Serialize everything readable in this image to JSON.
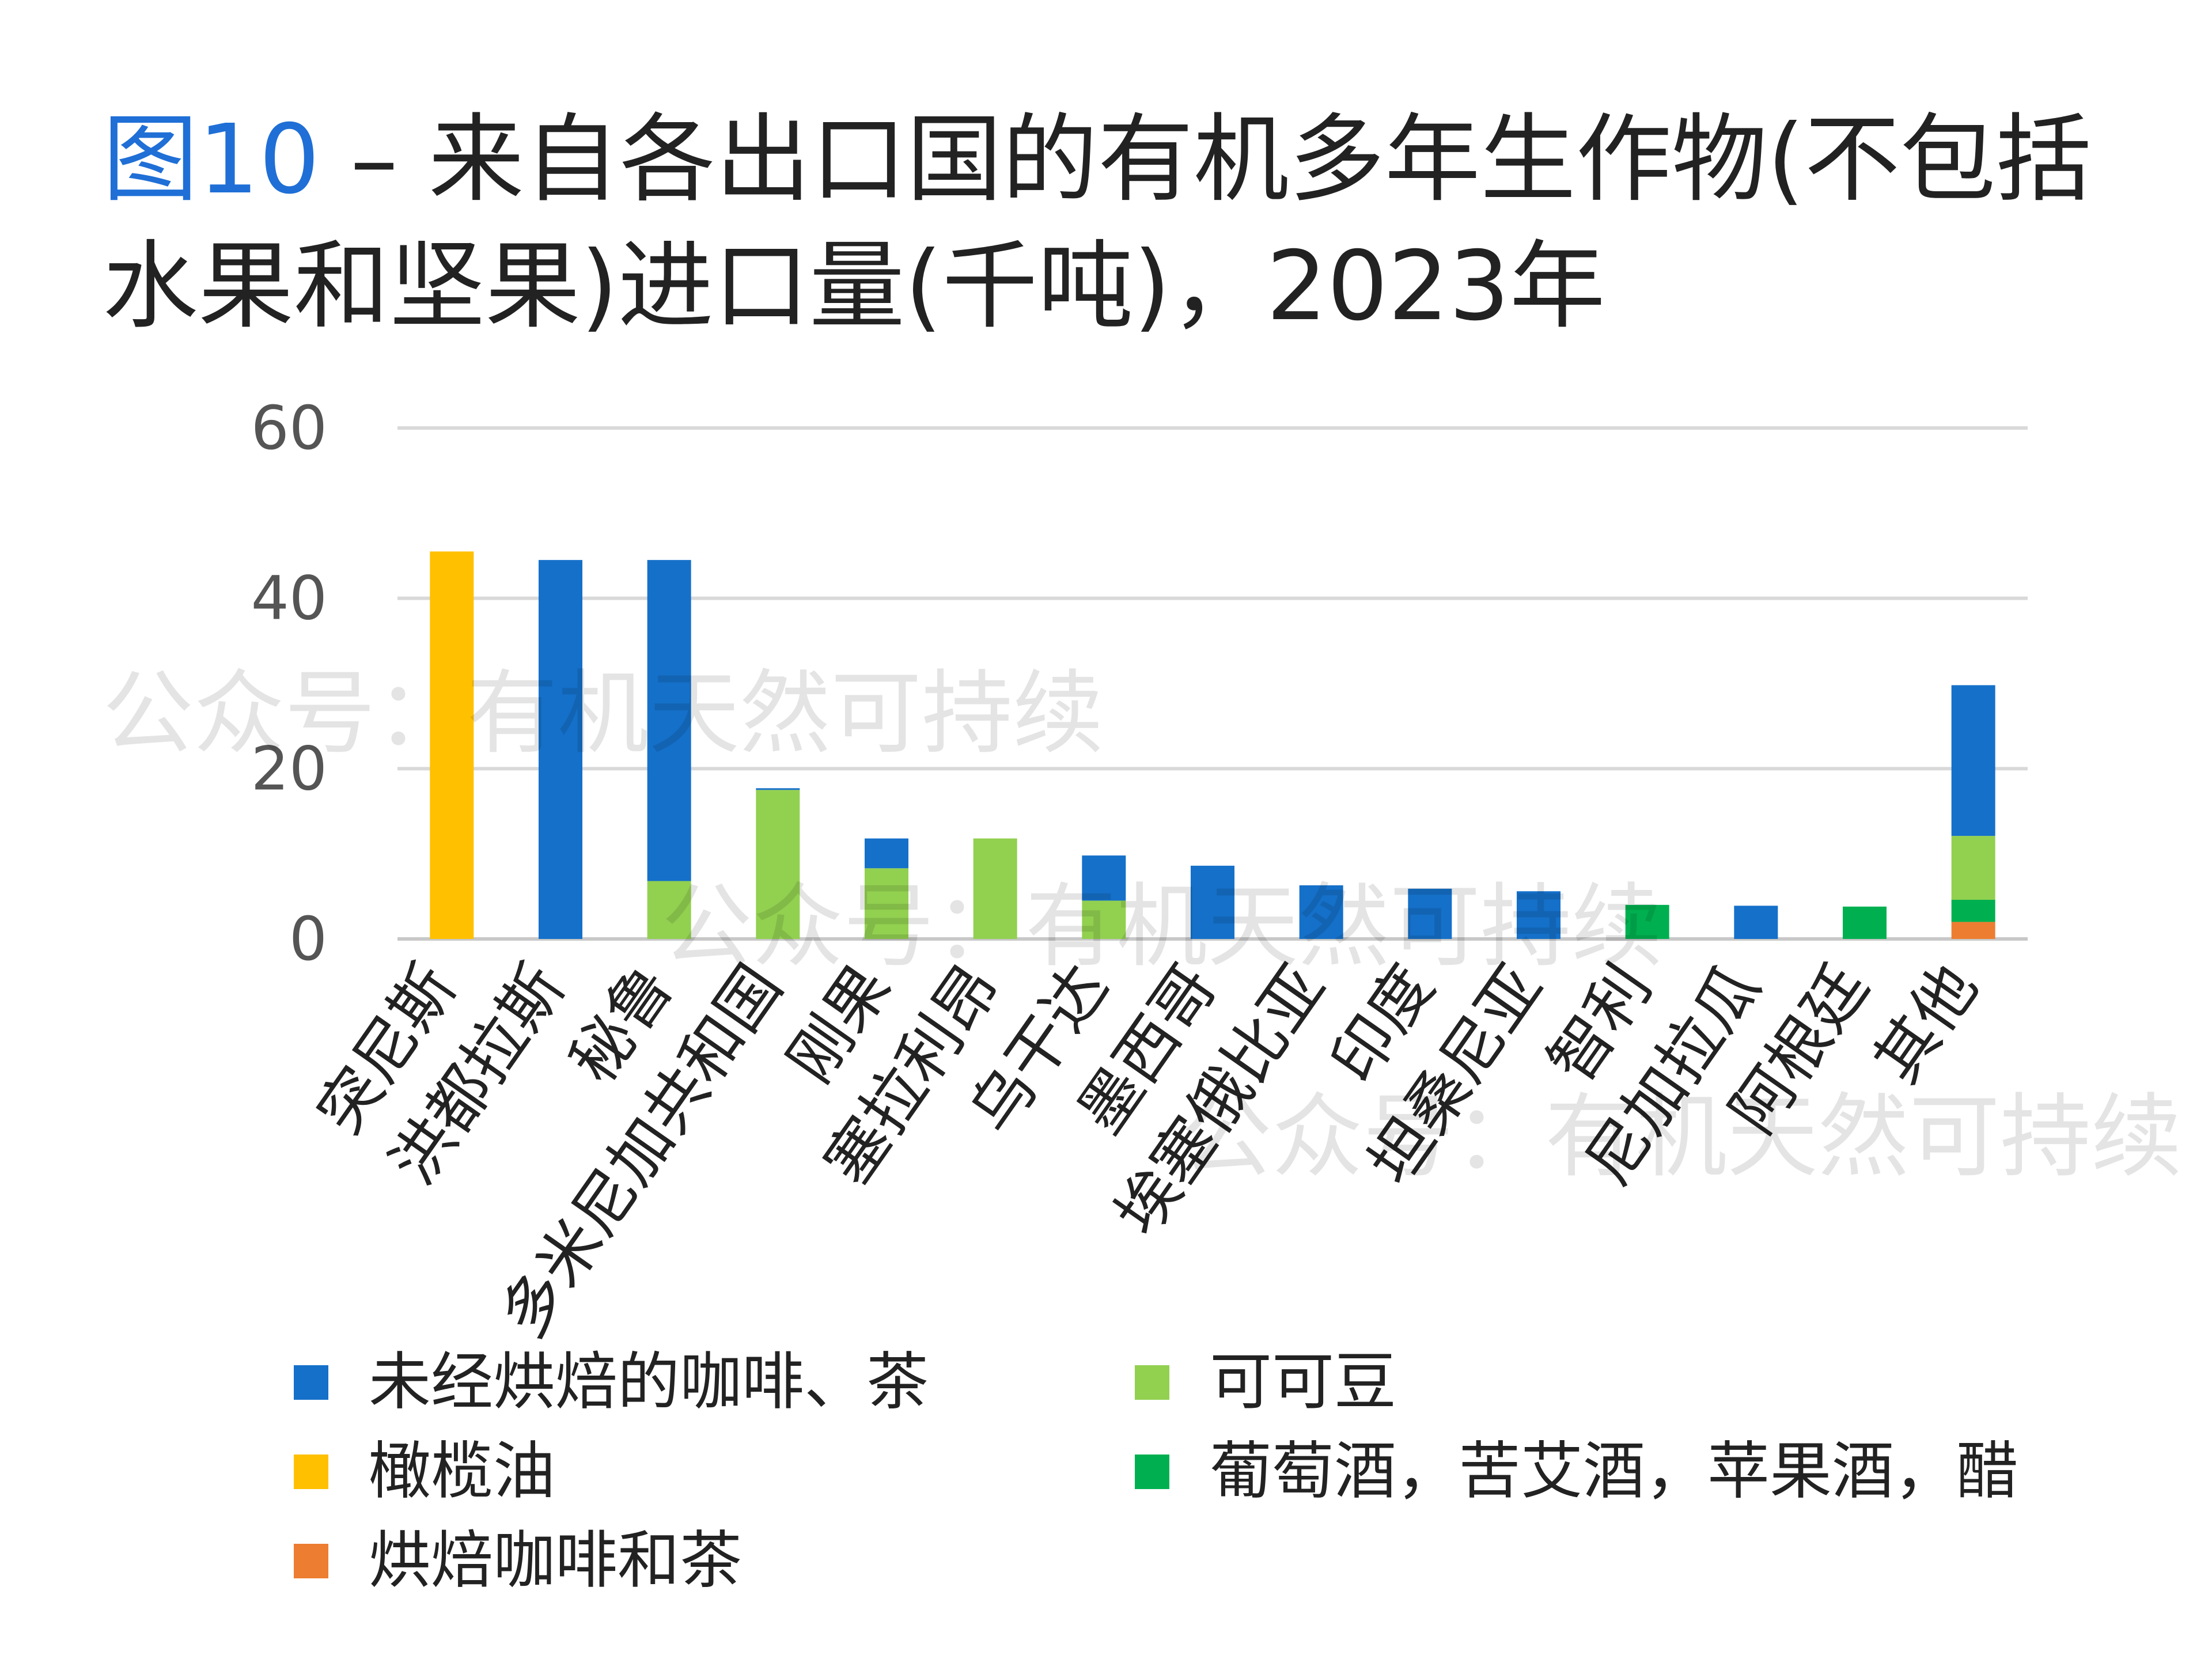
{
  "title": {
    "figure_no": "图10",
    "text": " – 来自各出口国的有机多年生作物(不包括水果和坚果)进口量(千吨)，2023年"
  },
  "watermark": "公众号：有机天然可持续",
  "chart_data": {
    "type": "bar",
    "stacked": true,
    "title": "图10 – 来自各出口国的有机多年生作物(不包括水果和坚果)进口量(千吨)，2023年",
    "xlabel": "",
    "ylabel": "",
    "ylim": [
      0,
      60
    ],
    "yticks": [
      0,
      20,
      40,
      60
    ],
    "grid": true,
    "legend_position": "bottom",
    "categories": [
      "突尼斯",
      "洪都拉斯",
      "秘鲁",
      "多米尼加共和国",
      "刚果",
      "塞拉利昂",
      "乌干达",
      "墨西哥",
      "埃塞俄比亚",
      "印度",
      "坦桑尼亚",
      "智利",
      "尼加拉瓜",
      "阿根廷",
      "其他"
    ],
    "series": [
      {
        "name": "烘焙咖啡和茶",
        "color": "#ED7D31",
        "values": [
          0,
          0,
          0,
          0,
          0,
          0,
          0,
          0,
          0,
          0,
          0,
          0,
          0,
          0,
          2
        ]
      },
      {
        "name": "葡萄酒，苦艾酒，苹果酒，醋",
        "color": "#00B050",
        "values": [
          0,
          0,
          0,
          0,
          0,
          0,
          0,
          0,
          0,
          0,
          0,
          4,
          0,
          3.8,
          2.6
        ]
      },
      {
        "name": "可可豆",
        "color": "#92D050",
        "values": [
          0,
          0,
          6.8,
          17.5,
          8.3,
          11.8,
          4.5,
          0,
          0,
          0,
          0,
          0,
          0,
          0,
          7.5
        ]
      },
      {
        "name": "橄榄油",
        "color": "#FFC000",
        "values": [
          45.5,
          0,
          0,
          0,
          0,
          0,
          0,
          0,
          0,
          0,
          0,
          0,
          0,
          0,
          0
        ]
      },
      {
        "name": "未经烘焙的咖啡、茶",
        "color": "#1570C9",
        "values": [
          0,
          44.5,
          37.7,
          0.2,
          3.5,
          0,
          5.3,
          8.6,
          6.3,
          5.9,
          5.6,
          0,
          3.9,
          0,
          17.7
        ]
      }
    ],
    "legend": [
      {
        "name": "未经烘焙的咖啡、茶",
        "color": "#1570C9"
      },
      {
        "name": "可可豆",
        "color": "#92D050"
      },
      {
        "name": "橄榄油",
        "color": "#FFC000"
      },
      {
        "name": "葡萄酒，苦艾酒，苹果酒，醋",
        "color": "#00B050"
      },
      {
        "name": "烘焙咖啡和茶",
        "color": "#ED7D31"
      }
    ]
  }
}
